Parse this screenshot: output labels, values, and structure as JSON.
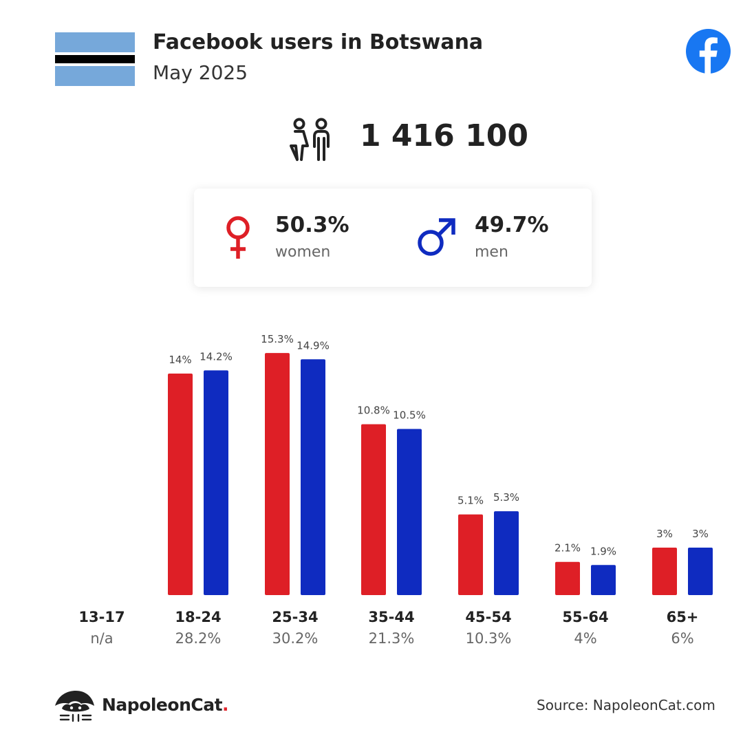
{
  "header": {
    "title": "Facebook users in Botswana",
    "subtitle": "May 2025"
  },
  "flag": {
    "icon": "botswana-flag",
    "colors": {
      "blue": "#76a8da",
      "white": "#ffffff",
      "black": "#000000"
    }
  },
  "platform_icon": "facebook-icon",
  "totals": {
    "users_icon": "users-icon",
    "total_users": "1 416 100"
  },
  "gender": {
    "women": {
      "icon": "female-icon",
      "percent": "50.3%",
      "label": "women",
      "color": "#de1f26"
    },
    "men": {
      "icon": "male-icon",
      "percent": "49.7%",
      "label": "men",
      "color": "#0f2bc0"
    }
  },
  "chart_data": {
    "type": "bar",
    "categories": [
      "13-17",
      "18-24",
      "25-34",
      "35-44",
      "45-54",
      "55-64",
      "65+"
    ],
    "category_share": [
      "n/a",
      "28.2%",
      "30.2%",
      "21.3%",
      "10.3%",
      "4%",
      "6%"
    ],
    "series": [
      {
        "values": [
          null,
          14,
          15.3,
          10.8,
          5.1,
          2.1,
          3
        ],
        "labels": [
          "",
          "14%",
          "15.3%",
          "10.8%",
          "5.1%",
          "2.1%",
          "3%"
        ],
        "color": "#de1f26"
      },
      {
        "values": [
          null,
          14.2,
          14.9,
          10.5,
          5.3,
          1.9,
          3
        ],
        "labels": [
          "",
          "14.2%",
          "14.9%",
          "10.5%",
          "5.3%",
          "1.9%",
          "3%"
        ],
        "color": "#0f2bc0"
      }
    ],
    "ylim": [
      0,
      16.5
    ],
    "grid": false,
    "legend": "none"
  },
  "footer": {
    "brand_icon": "napoleoncat-logo-icon",
    "brand_name": "NapoleonCat",
    "brand_dot": ".",
    "source": "Source: NapoleonCat.com"
  }
}
